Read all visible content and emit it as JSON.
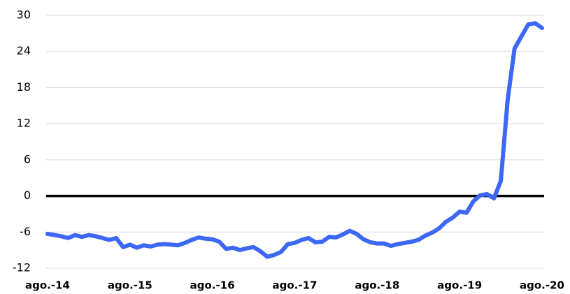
{
  "chart_data": {
    "type": "line",
    "categories": [
      "ago.-14",
      null,
      null,
      null,
      null,
      null,
      null,
      null,
      null,
      null,
      null,
      null,
      "ago.-15",
      null,
      null,
      null,
      null,
      null,
      null,
      null,
      null,
      null,
      null,
      null,
      "ago.-16",
      null,
      null,
      null,
      null,
      null,
      null,
      null,
      null,
      null,
      null,
      null,
      "ago.-17",
      null,
      null,
      null,
      null,
      null,
      null,
      null,
      null,
      null,
      null,
      null,
      "ago.-18",
      null,
      null,
      null,
      null,
      null,
      null,
      null,
      null,
      null,
      null,
      null,
      "ago.-19",
      null,
      null,
      null,
      null,
      null,
      null,
      null,
      null,
      null,
      null,
      null,
      "ago.-20"
    ],
    "series": [
      {
        "color": "#3d68f5",
        "values": [
          -6.3,
          -6.5,
          -6.7,
          -7.0,
          -6.5,
          -6.8,
          -6.5,
          -6.7,
          -7.0,
          -7.3,
          -7.0,
          -8.5,
          -8.1,
          -8.6,
          -8.2,
          -8.4,
          -8.1,
          -8.0,
          -8.1,
          -8.2,
          -7.8,
          -7.3,
          -6.9,
          -7.1,
          -7.2,
          -7.6,
          -8.8,
          -8.6,
          -9.0,
          -8.7,
          -8.5,
          -9.2,
          -10.1,
          -9.8,
          -9.3,
          -8.0,
          -7.8,
          -7.3,
          -7.0,
          -7.7,
          -7.6,
          -6.8,
          -6.9,
          -6.4,
          -5.8,
          -6.3,
          -7.2,
          -7.7,
          -7.9,
          -7.9,
          -8.3,
          -8.0,
          -7.8,
          -7.6,
          -7.3,
          -6.6,
          -6.1,
          -5.4,
          -4.3,
          -3.6,
          -2.6,
          -2.8,
          -0.9,
          0.1,
          0.3,
          -0.4,
          2.5,
          16,
          24.5,
          26.5,
          28.5,
          28.7,
          27.9
        ]
      }
    ],
    "ylim": [
      -12,
      30
    ],
    "yticks": [
      -12,
      -6,
      0,
      6,
      12,
      18,
      24,
      30
    ],
    "grid": true,
    "zero_line": true
  }
}
